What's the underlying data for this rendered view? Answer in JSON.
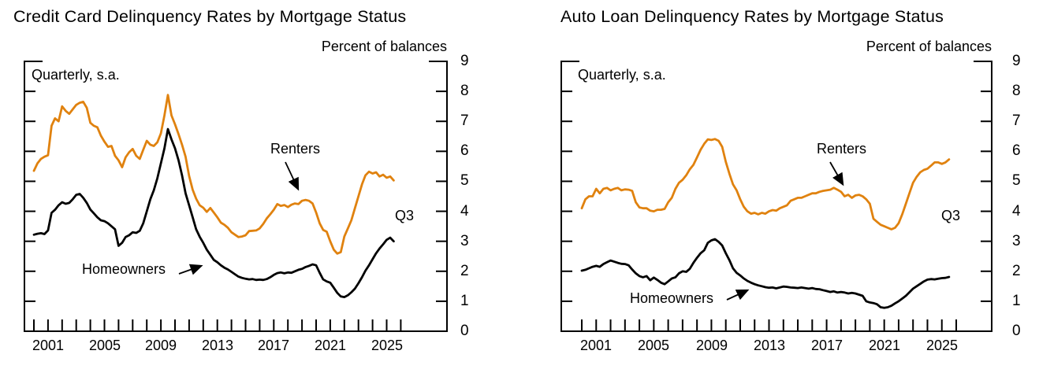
{
  "colors": {
    "renters_line": "#e0820f",
    "homeowners_line": "#000000",
    "frame": "#000000",
    "text": "#000000",
    "background": "#ffffff"
  },
  "chart_data": [
    {
      "type": "line",
      "title": "Credit Card Delinquency Rates by Mortgage Status",
      "unit_label": "Percent of balances",
      "annotation": "Quarterly, s.a.",
      "latest_quarter_label": "Q3",
      "x_start": 2000.0,
      "x_quarter_step": 0.25,
      "x_label_years": [
        "2001",
        "2005",
        "2009",
        "2013",
        "2017",
        "2021",
        "2025"
      ],
      "y_tick_labels": [
        "9",
        "8",
        "7",
        "6",
        "5",
        "4",
        "3",
        "2",
        "1",
        "0"
      ],
      "ylim": [
        0,
        9
      ],
      "grid": false,
      "legend_position": "inline-annotations",
      "series": [
        {
          "name": "Renters",
          "color": "#e0820f",
          "values": [
            5.35,
            5.6,
            5.75,
            5.82,
            5.87,
            6.85,
            7.1,
            7.0,
            7.5,
            7.35,
            7.25,
            7.4,
            7.55,
            7.62,
            7.65,
            7.45,
            6.95,
            6.85,
            6.8,
            6.52,
            6.32,
            6.15,
            6.18,
            5.85,
            5.7,
            5.47,
            5.8,
            5.97,
            6.08,
            5.85,
            5.75,
            6.05,
            6.35,
            6.22,
            6.18,
            6.3,
            6.6,
            7.2,
            7.88,
            7.2,
            6.9,
            6.57,
            6.22,
            5.82,
            5.18,
            4.72,
            4.42,
            4.2,
            4.12,
            3.98,
            4.11,
            3.96,
            3.8,
            3.62,
            3.55,
            3.45,
            3.3,
            3.22,
            3.14,
            3.16,
            3.2,
            3.34,
            3.35,
            3.36,
            3.43,
            3.58,
            3.76,
            3.9,
            4.05,
            4.24,
            4.18,
            4.21,
            4.14,
            4.22,
            4.26,
            4.24,
            4.35,
            4.38,
            4.35,
            4.26,
            3.96,
            3.6,
            3.38,
            3.32,
            3.0,
            2.72,
            2.59,
            2.64,
            3.16,
            3.43,
            3.7,
            4.1,
            4.5,
            4.9,
            5.2,
            5.32,
            5.26,
            5.3,
            5.16,
            5.22,
            5.12,
            5.16,
            5.03
          ]
        },
        {
          "name": "Homeowners",
          "color": "#000000",
          "values": [
            3.22,
            3.25,
            3.27,
            3.24,
            3.36,
            3.95,
            4.05,
            4.2,
            4.3,
            4.25,
            4.28,
            4.4,
            4.55,
            4.58,
            4.45,
            4.28,
            4.06,
            3.93,
            3.8,
            3.7,
            3.67,
            3.6,
            3.5,
            3.4,
            2.85,
            2.95,
            3.14,
            3.2,
            3.3,
            3.28,
            3.35,
            3.6,
            4.0,
            4.4,
            4.7,
            5.1,
            5.6,
            6.1,
            6.74,
            6.4,
            6.1,
            5.7,
            5.2,
            4.6,
            4.2,
            3.8,
            3.4,
            3.15,
            2.95,
            2.72,
            2.55,
            2.38,
            2.3,
            2.2,
            2.12,
            2.06,
            1.98,
            1.9,
            1.82,
            1.78,
            1.75,
            1.73,
            1.74,
            1.71,
            1.72,
            1.71,
            1.74,
            1.8,
            1.88,
            1.94,
            1.96,
            1.93,
            1.96,
            1.95,
            2.0,
            2.05,
            2.08,
            2.14,
            2.18,
            2.23,
            2.2,
            1.95,
            1.73,
            1.66,
            1.62,
            1.45,
            1.28,
            1.16,
            1.14,
            1.2,
            1.3,
            1.42,
            1.6,
            1.8,
            2.02,
            2.2,
            2.4,
            2.6,
            2.76,
            2.9,
            3.05,
            3.12,
            3.0
          ]
        }
      ]
    },
    {
      "type": "line",
      "title": "Auto Loan Delinquency Rates by Mortgage Status",
      "unit_label": "Percent of balances",
      "annotation": "Quarterly, s.a.",
      "latest_quarter_label": "Q3",
      "x_start": 2000.0,
      "x_quarter_step": 0.25,
      "x_label_years": [
        "2001",
        "2005",
        "2009",
        "2013",
        "2017",
        "2021",
        "2025"
      ],
      "y_tick_labels": [
        "9",
        "8",
        "7",
        "6",
        "5",
        "4",
        "3",
        "2",
        "1",
        "0"
      ],
      "ylim": [
        0,
        9
      ],
      "grid": false,
      "legend_position": "inline-annotations",
      "series": [
        {
          "name": "Renters",
          "color": "#e0820f",
          "values": [
            4.1,
            4.4,
            4.5,
            4.5,
            4.75,
            4.6,
            4.75,
            4.78,
            4.7,
            4.75,
            4.78,
            4.7,
            4.73,
            4.72,
            4.68,
            4.3,
            4.13,
            4.1,
            4.1,
            4.02,
            4.0,
            4.05,
            4.05,
            4.08,
            4.3,
            4.45,
            4.75,
            4.95,
            5.05,
            5.2,
            5.4,
            5.55,
            5.8,
            6.05,
            6.25,
            6.4,
            6.38,
            6.41,
            6.35,
            6.15,
            5.65,
            5.25,
            4.9,
            4.7,
            4.4,
            4.15,
            4.0,
            3.92,
            3.95,
            3.9,
            3.95,
            3.92,
            4.0,
            4.04,
            4.02,
            4.1,
            4.15,
            4.2,
            4.35,
            4.4,
            4.45,
            4.45,
            4.5,
            4.55,
            4.6,
            4.6,
            4.65,
            4.68,
            4.7,
            4.72,
            4.78,
            4.72,
            4.65,
            4.5,
            4.55,
            4.45,
            4.53,
            4.55,
            4.5,
            4.4,
            4.25,
            3.75,
            3.65,
            3.55,
            3.5,
            3.45,
            3.4,
            3.45,
            3.6,
            3.9,
            4.25,
            4.6,
            4.95,
            5.15,
            5.3,
            5.38,
            5.42,
            5.52,
            5.63,
            5.63,
            5.58,
            5.63,
            5.73
          ]
        },
        {
          "name": "Homeowners",
          "color": "#000000",
          "values": [
            2.02,
            2.05,
            2.1,
            2.15,
            2.18,
            2.15,
            2.24,
            2.3,
            2.36,
            2.32,
            2.28,
            2.25,
            2.24,
            2.2,
            2.06,
            1.93,
            1.84,
            1.8,
            1.84,
            1.7,
            1.79,
            1.71,
            1.62,
            1.57,
            1.66,
            1.76,
            1.8,
            1.93,
            2.0,
            1.98,
            2.08,
            2.28,
            2.45,
            2.6,
            2.7,
            2.95,
            3.03,
            3.07,
            2.98,
            2.86,
            2.6,
            2.37,
            2.1,
            1.95,
            1.86,
            1.76,
            1.68,
            1.62,
            1.57,
            1.53,
            1.5,
            1.47,
            1.45,
            1.46,
            1.43,
            1.46,
            1.49,
            1.48,
            1.46,
            1.45,
            1.44,
            1.46,
            1.44,
            1.42,
            1.44,
            1.41,
            1.4,
            1.37,
            1.34,
            1.31,
            1.33,
            1.29,
            1.31,
            1.29,
            1.26,
            1.28,
            1.26,
            1.22,
            1.18,
            1.0,
            0.96,
            0.94,
            0.9,
            0.8,
            0.78,
            0.8,
            0.85,
            0.93,
            1.0,
            1.09,
            1.18,
            1.3,
            1.42,
            1.5,
            1.58,
            1.66,
            1.72,
            1.74,
            1.73,
            1.75,
            1.77,
            1.78,
            1.81
          ]
        }
      ]
    }
  ]
}
